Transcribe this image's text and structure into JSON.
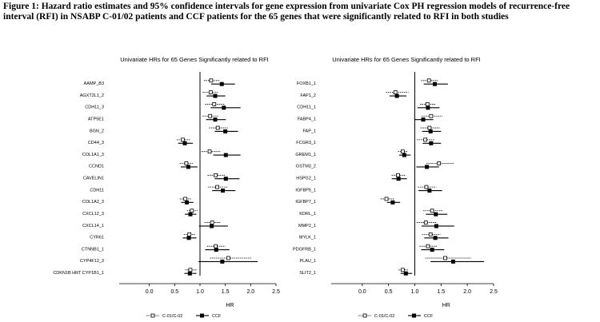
{
  "caption": "Figure 1: Hazard ratio estimates and 95% confidence intervals for gene expression from univariate Cox PH regression models of recurrence-free interval (RFI) in NSABP C-01/02 patients and CCF patients for the 65 genes that were significantly related to RFI in both studies",
  "chart_data": [
    {
      "type": "forest",
      "title": "Univariate HRs for 65 Genes Significantly related to RFI",
      "xlabel": "HR",
      "ylabel": "",
      "xlim": [
        -0.5,
        2.5
      ],
      "xticks": [
        0.0,
        0.5,
        1.0,
        1.5,
        2.0,
        2.5
      ],
      "xtick_labels": [
        "0.0",
        "0.5",
        "1.0",
        "1.5",
        "2.0",
        "2.5"
      ],
      "reference_line": 1.0,
      "grid": false,
      "legend_position": "bottom",
      "legend": [
        {
          "label": "C-01/C-02",
          "style": "open"
        },
        {
          "label": "CCF",
          "style": "filled"
        }
      ],
      "genes": [
        "AAMP.1B3",
        "AGXT2L1_2",
        "CDH11_3",
        "ATP5E1",
        "BGN_1",
        "CD44_3",
        "COL1A1_3",
        "CCND1",
        "CAVELIN1",
        "CDH11",
        "COL1A2_3",
        "CXCL12_3",
        "CXCL14_1",
        "CYR61",
        "CTNNB1_1",
        "CYP4F12_3",
        "CDKN1B_HRT CYP1B1_1"
      ],
      "gene_labels": [
        "AAMP_B3",
        "AGXT2L1_2",
        "CDH11_3",
        "ATP5E1",
        "BGN_2",
        "CD44_3",
        "COL1A1_3",
        "CCND1",
        "CAVELIN1",
        "CDH11",
        "COL1A2_3",
        "CXCL12_3",
        "CXCL14_1",
        "CYR61",
        "CTNNB1_1",
        "CYP4F12_3",
        "CDKN1B   HRT   CYP1B1_1"
      ],
      "series": [
        {
          "name": "C-01/C-02",
          "hr": [
            1.22,
            1.21,
            1.28,
            1.2,
            1.35,
            0.66,
            1.19,
            0.73,
            1.31,
            1.34,
            0.71,
            0.84,
            1.24,
            0.79,
            1.31,
            1.56,
            0.81
          ],
          "lo": [
            1.08,
            1.05,
            1.1,
            1.05,
            1.18,
            0.54,
            1.03,
            0.6,
            1.15,
            1.16,
            0.6,
            0.74,
            1.09,
            0.68,
            1.14,
            1.2,
            0.71
          ],
          "hi": [
            1.38,
            1.36,
            1.48,
            1.37,
            1.55,
            0.8,
            1.4,
            0.86,
            1.51,
            1.55,
            0.82,
            0.95,
            1.41,
            0.9,
            1.5,
            2.01,
            0.93
          ]
        },
        {
          "name": "CCF",
          "hr": [
            1.43,
            1.3,
            1.47,
            1.3,
            1.5,
            0.7,
            1.51,
            0.77,
            1.51,
            1.45,
            0.74,
            0.81,
            1.23,
            0.78,
            1.32,
            1.44,
            0.8
          ],
          "lo": [
            1.22,
            1.13,
            1.21,
            1.12,
            1.29,
            0.57,
            1.26,
            0.62,
            1.29,
            1.24,
            0.63,
            0.7,
            0.98,
            0.66,
            1.1,
            0.97,
            0.69
          ],
          "hi": [
            1.69,
            1.5,
            1.8,
            1.51,
            1.75,
            0.86,
            1.8,
            0.95,
            1.78,
            1.7,
            0.87,
            0.93,
            1.55,
            0.93,
            1.58,
            2.14,
            0.93
          ]
        }
      ]
    },
    {
      "type": "forest",
      "title": "Univariate HRs for 65 Genes Significantly related to RFI",
      "xlabel": "HR",
      "ylabel": "",
      "xlim": [
        -0.5,
        2.5
      ],
      "xticks": [
        0.0,
        0.5,
        1.0,
        1.5,
        2.0,
        2.5
      ],
      "xtick_labels": [
        "0.0",
        "0.5",
        "1.0",
        "1.5",
        "2.0",
        "2.5"
      ],
      "reference_line": 1.0,
      "grid": false,
      "legend_position": "bottom",
      "legend": [
        {
          "label": "C-01/C-02",
          "style": "open"
        },
        {
          "label": "CCF",
          "style": "filled"
        }
      ],
      "genes": [
        "FOXB1.1",
        "FAP1.2",
        "CDH11_1",
        "FABP4.1",
        "FAP.1",
        "FCGR3.1",
        "GREM1.1",
        "GSTM3_2",
        "HSPG2.1",
        "IGFBP5.1",
        "IGFBP7.1",
        "KDRL1",
        "MMP2.1",
        "MYLK.1",
        "PDGFRB.1",
        "PLAU.1",
        "SLIT2.1"
      ],
      "gene_labels": [
        "FOXB1_1",
        "FAP1_2",
        "CDH11_1",
        "FABP4_1",
        "FAP_1",
        "FCGR3_1",
        "GREM1_1",
        "GSTM3_2",
        "HSPG2_1",
        "IGFBP5_1",
        "IGFBP7_1",
        "KDRL_1",
        "MMP2_1",
        "MYLK_1",
        "PDGFRB_1",
        "PLAU_1",
        "SLIT2_1"
      ],
      "series": [
        {
          "name": "C-01/C-02",
          "hr": [
            1.27,
            0.63,
            1.24,
            1.31,
            1.28,
            1.2,
            0.77,
            1.46,
            0.68,
            1.22,
            0.46,
            1.33,
            1.21,
            1.3,
            1.25,
            1.58,
            0.77
          ],
          "lo": [
            1.12,
            0.45,
            1.1,
            1.13,
            1.11,
            1.04,
            0.68,
            1.22,
            0.56,
            1.06,
            0.35,
            1.16,
            1.04,
            1.14,
            1.09,
            1.2,
            0.69
          ],
          "hi": [
            1.44,
            0.88,
            1.4,
            1.52,
            1.47,
            1.38,
            0.87,
            1.75,
            0.83,
            1.41,
            0.61,
            1.53,
            1.41,
            1.49,
            1.43,
            2.08,
            0.87
          ]
        },
        {
          "name": "CCF",
          "hr": [
            1.38,
            0.66,
            1.25,
            1.16,
            1.3,
            1.31,
            0.8,
            1.23,
            0.69,
            1.28,
            0.58,
            1.4,
            1.41,
            1.39,
            1.33,
            1.73,
            0.83
          ],
          "lo": [
            1.17,
            0.52,
            1.05,
            1.0,
            1.14,
            1.15,
            0.7,
            1.03,
            0.56,
            1.07,
            0.47,
            1.21,
            1.13,
            1.18,
            1.12,
            1.3,
            0.73
          ],
          "hi": [
            1.63,
            0.84,
            1.47,
            1.35,
            1.5,
            1.5,
            0.92,
            1.46,
            0.85,
            1.52,
            0.72,
            1.62,
            1.75,
            1.64,
            1.56,
            2.32,
            0.95
          ]
        }
      ]
    }
  ]
}
